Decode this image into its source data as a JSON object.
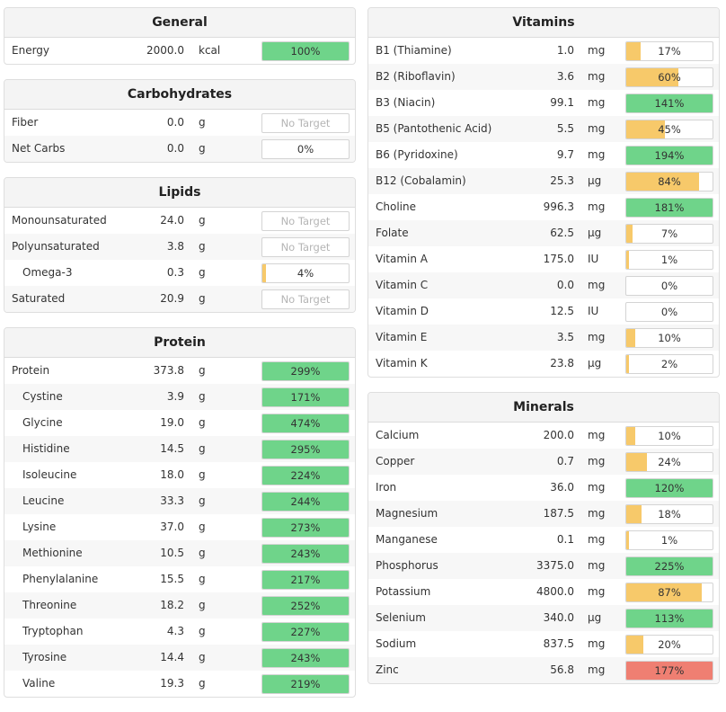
{
  "colors": {
    "green": "#6fd48a",
    "yellow": "#f7c96a",
    "red": "#ef7f72"
  },
  "left": [
    {
      "title": "General",
      "rows": [
        {
          "name": "Energy",
          "amount": "2000.0",
          "unit": "kcal",
          "pct": "100%",
          "fill": 1.0,
          "color": "green"
        }
      ]
    },
    {
      "title": "Carbohydrates",
      "rows": [
        {
          "name": "Fiber",
          "amount": "0.0",
          "unit": "g",
          "pct": "No Target",
          "fill": 0,
          "color": "none"
        },
        {
          "name": "Net Carbs",
          "amount": "0.0",
          "unit": "g",
          "pct": "0%",
          "fill": 0,
          "color": "none"
        }
      ]
    },
    {
      "title": "Lipids",
      "rows": [
        {
          "name": "Monounsaturated",
          "amount": "24.0",
          "unit": "g",
          "pct": "No Target",
          "fill": 0,
          "color": "none"
        },
        {
          "name": "Polyunsaturated",
          "amount": "3.8",
          "unit": "g",
          "pct": "No Target",
          "fill": 0,
          "color": "none"
        },
        {
          "name": "Omega-3",
          "amount": "0.3",
          "unit": "g",
          "pct": "4%",
          "fill": 0.04,
          "color": "yellow",
          "indent": true
        },
        {
          "name": "Saturated",
          "amount": "20.9",
          "unit": "g",
          "pct": "No Target",
          "fill": 0,
          "color": "none"
        }
      ]
    },
    {
      "title": "Protein",
      "rows": [
        {
          "name": "Protein",
          "amount": "373.8",
          "unit": "g",
          "pct": "299%",
          "fill": 1.0,
          "color": "green"
        },
        {
          "name": "Cystine",
          "amount": "3.9",
          "unit": "g",
          "pct": "171%",
          "fill": 1.0,
          "color": "green",
          "indent": true
        },
        {
          "name": "Glycine",
          "amount": "19.0",
          "unit": "g",
          "pct": "474%",
          "fill": 1.0,
          "color": "green",
          "indent": true
        },
        {
          "name": "Histidine",
          "amount": "14.5",
          "unit": "g",
          "pct": "295%",
          "fill": 1.0,
          "color": "green",
          "indent": true
        },
        {
          "name": "Isoleucine",
          "amount": "18.0",
          "unit": "g",
          "pct": "224%",
          "fill": 1.0,
          "color": "green",
          "indent": true
        },
        {
          "name": "Leucine",
          "amount": "33.3",
          "unit": "g",
          "pct": "244%",
          "fill": 1.0,
          "color": "green",
          "indent": true
        },
        {
          "name": "Lysine",
          "amount": "37.0",
          "unit": "g",
          "pct": "273%",
          "fill": 1.0,
          "color": "green",
          "indent": true
        },
        {
          "name": "Methionine",
          "amount": "10.5",
          "unit": "g",
          "pct": "243%",
          "fill": 1.0,
          "color": "green",
          "indent": true
        },
        {
          "name": "Phenylalanine",
          "amount": "15.5",
          "unit": "g",
          "pct": "217%",
          "fill": 1.0,
          "color": "green",
          "indent": true
        },
        {
          "name": "Threonine",
          "amount": "18.2",
          "unit": "g",
          "pct": "252%",
          "fill": 1.0,
          "color": "green",
          "indent": true
        },
        {
          "name": "Tryptophan",
          "amount": "4.3",
          "unit": "g",
          "pct": "227%",
          "fill": 1.0,
          "color": "green",
          "indent": true
        },
        {
          "name": "Tyrosine",
          "amount": "14.4",
          "unit": "g",
          "pct": "243%",
          "fill": 1.0,
          "color": "green",
          "indent": true
        },
        {
          "name": "Valine",
          "amount": "19.3",
          "unit": "g",
          "pct": "219%",
          "fill": 1.0,
          "color": "green",
          "indent": true
        }
      ]
    }
  ],
  "right": [
    {
      "title": "Vitamins",
      "rows": [
        {
          "name": "B1 (Thiamine)",
          "amount": "1.0",
          "unit": "mg",
          "pct": "17%",
          "fill": 0.17,
          "color": "yellow"
        },
        {
          "name": "B2 (Riboflavin)",
          "amount": "3.6",
          "unit": "mg",
          "pct": "60%",
          "fill": 0.6,
          "color": "yellow"
        },
        {
          "name": "B3 (Niacin)",
          "amount": "99.1",
          "unit": "mg",
          "pct": "141%",
          "fill": 1.0,
          "color": "green"
        },
        {
          "name": "B5 (Pantothenic Acid)",
          "amount": "5.5",
          "unit": "mg",
          "pct": "45%",
          "fill": 0.45,
          "color": "yellow"
        },
        {
          "name": "B6 (Pyridoxine)",
          "amount": "9.7",
          "unit": "mg",
          "pct": "194%",
          "fill": 1.0,
          "color": "green"
        },
        {
          "name": "B12 (Cobalamin)",
          "amount": "25.3",
          "unit": "µg",
          "pct": "84%",
          "fill": 0.84,
          "color": "yellow"
        },
        {
          "name": "Choline",
          "amount": "996.3",
          "unit": "mg",
          "pct": "181%",
          "fill": 1.0,
          "color": "green"
        },
        {
          "name": "Folate",
          "amount": "62.5",
          "unit": "µg",
          "pct": "7%",
          "fill": 0.07,
          "color": "yellow"
        },
        {
          "name": "Vitamin A",
          "amount": "175.0",
          "unit": "IU",
          "pct": "1%",
          "fill": 0.01,
          "color": "yellow"
        },
        {
          "name": "Vitamin C",
          "amount": "0.0",
          "unit": "mg",
          "pct": "0%",
          "fill": 0,
          "color": "none"
        },
        {
          "name": "Vitamin D",
          "amount": "12.5",
          "unit": "IU",
          "pct": "0%",
          "fill": 0,
          "color": "none"
        },
        {
          "name": "Vitamin E",
          "amount": "3.5",
          "unit": "mg",
          "pct": "10%",
          "fill": 0.1,
          "color": "yellow"
        },
        {
          "name": "Vitamin K",
          "amount": "23.8",
          "unit": "µg",
          "pct": "2%",
          "fill": 0.02,
          "color": "yellow"
        }
      ]
    },
    {
      "title": "Minerals",
      "rows": [
        {
          "name": "Calcium",
          "amount": "200.0",
          "unit": "mg",
          "pct": "10%",
          "fill": 0.1,
          "color": "yellow"
        },
        {
          "name": "Copper",
          "amount": "0.7",
          "unit": "mg",
          "pct": "24%",
          "fill": 0.24,
          "color": "yellow"
        },
        {
          "name": "Iron",
          "amount": "36.0",
          "unit": "mg",
          "pct": "120%",
          "fill": 1.0,
          "color": "green"
        },
        {
          "name": "Magnesium",
          "amount": "187.5",
          "unit": "mg",
          "pct": "18%",
          "fill": 0.18,
          "color": "yellow"
        },
        {
          "name": "Manganese",
          "amount": "0.1",
          "unit": "mg",
          "pct": "1%",
          "fill": 0.01,
          "color": "yellow"
        },
        {
          "name": "Phosphorus",
          "amount": "3375.0",
          "unit": "mg",
          "pct": "225%",
          "fill": 1.0,
          "color": "green"
        },
        {
          "name": "Potassium",
          "amount": "4800.0",
          "unit": "mg",
          "pct": "87%",
          "fill": 0.87,
          "color": "yellow"
        },
        {
          "name": "Selenium",
          "amount": "340.0",
          "unit": "µg",
          "pct": "113%",
          "fill": 1.0,
          "color": "green"
        },
        {
          "name": "Sodium",
          "amount": "837.5",
          "unit": "mg",
          "pct": "20%",
          "fill": 0.2,
          "color": "yellow"
        },
        {
          "name": "Zinc",
          "amount": "56.8",
          "unit": "mg",
          "pct": "177%",
          "fill": 1.0,
          "color": "red"
        }
      ]
    }
  ]
}
